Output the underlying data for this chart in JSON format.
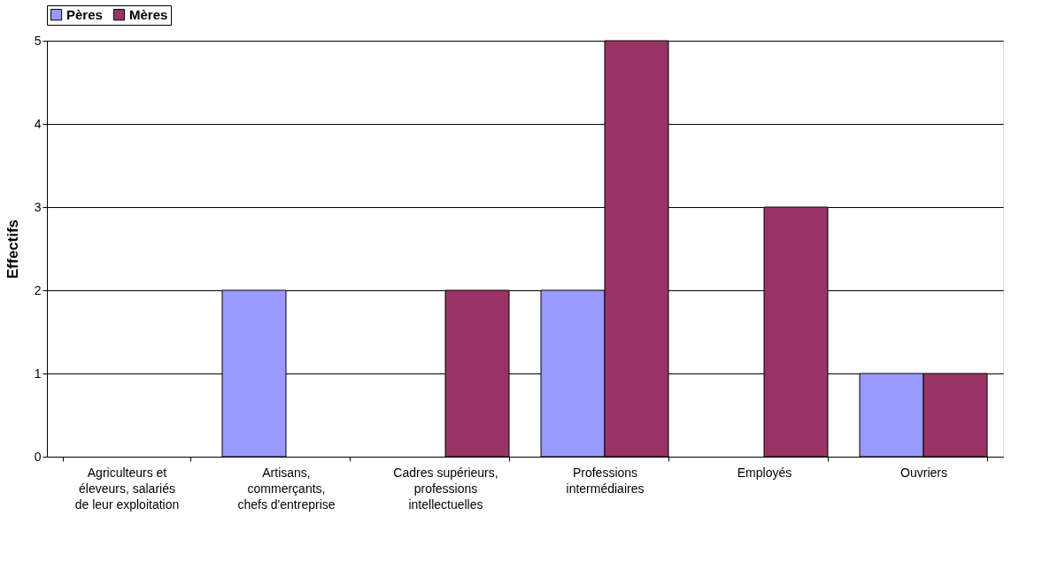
{
  "chart_data": {
    "type": "bar",
    "ylabel": "Effectifs",
    "categories": [
      "Agriculteurs et\néleveurs, salariés\nde leur exploitation",
      "Artisans,\ncommerçants,\nchefs d'entreprise",
      "Cadres supérieurs,\nprofessions\nintellectuelles",
      "Professions\nintermédiaires",
      "Employés",
      "Ouvriers"
    ],
    "series": [
      {
        "name": "Pères",
        "color": "#9999ff",
        "values": [
          0,
          2,
          0,
          2,
          0,
          1
        ]
      },
      {
        "name": "Mères",
        "color": "#993366",
        "values": [
          0,
          0,
          2,
          5,
          3,
          1
        ]
      }
    ],
    "ylim": [
      0,
      5
    ],
    "yticks": [
      0,
      1,
      2,
      3,
      4,
      5
    ],
    "grid": "y",
    "legend": "top"
  }
}
